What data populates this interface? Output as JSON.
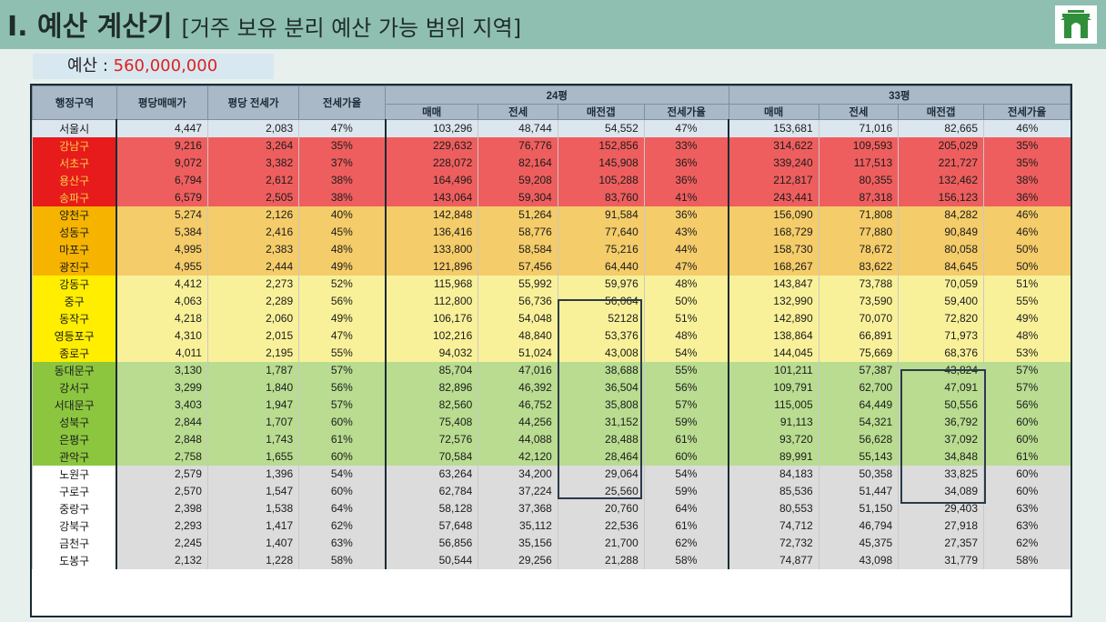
{
  "header": {
    "title": "I. 예산 계산기",
    "subtitle": "[거주 보유 분리 예산 가능 범위 지역]"
  },
  "budget": {
    "label": "예산 : ",
    "value": "560,000,000"
  },
  "table": {
    "col_region": "행정구역",
    "col_sale_per_pyeong": "평당매매가",
    "col_jeonse_per_pyeong": "평당 전세가",
    "col_jeonse_ratio": "전세가율",
    "group_24": "24평",
    "group_33": "33평",
    "sub_cols": [
      "매매",
      "전세",
      "매전갭",
      "전세가율"
    ],
    "rows": [
      {
        "tier": "seoul",
        "v": [
          "서울시",
          "4,447",
          "2,083",
          "47%",
          "103,296",
          "48,744",
          "54,552",
          "47%",
          "153,681",
          "71,016",
          "82,665",
          "46%"
        ]
      },
      {
        "tier": "red",
        "v": [
          "강남구",
          "9,216",
          "3,264",
          "35%",
          "229,632",
          "76,776",
          "152,856",
          "33%",
          "314,622",
          "109,593",
          "205,029",
          "35%"
        ]
      },
      {
        "tier": "red",
        "v": [
          "서초구",
          "9,072",
          "3,382",
          "37%",
          "228,072",
          "82,164",
          "145,908",
          "36%",
          "339,240",
          "117,513",
          "221,727",
          "35%"
        ]
      },
      {
        "tier": "red",
        "v": [
          "용산구",
          "6,794",
          "2,612",
          "38%",
          "164,496",
          "59,208",
          "105,288",
          "36%",
          "212,817",
          "80,355",
          "132,462",
          "38%"
        ]
      },
      {
        "tier": "red",
        "v": [
          "송파구",
          "6,579",
          "2,505",
          "38%",
          "143,064",
          "59,304",
          "83,760",
          "41%",
          "243,441",
          "87,318",
          "156,123",
          "36%"
        ]
      },
      {
        "tier": "orange",
        "v": [
          "양천구",
          "5,274",
          "2,126",
          "40%",
          "142,848",
          "51,264",
          "91,584",
          "36%",
          "156,090",
          "71,808",
          "84,282",
          "46%"
        ]
      },
      {
        "tier": "orange",
        "v": [
          "성동구",
          "5,384",
          "2,416",
          "45%",
          "136,416",
          "58,776",
          "77,640",
          "43%",
          "168,729",
          "77,880",
          "90,849",
          "46%"
        ]
      },
      {
        "tier": "orange",
        "v": [
          "마포구",
          "4,995",
          "2,383",
          "48%",
          "133,800",
          "58,584",
          "75,216",
          "44%",
          "158,730",
          "78,672",
          "80,058",
          "50%"
        ]
      },
      {
        "tier": "orange",
        "v": [
          "광진구",
          "4,955",
          "2,444",
          "49%",
          "121,896",
          "57,456",
          "64,440",
          "47%",
          "168,267",
          "83,622",
          "84,645",
          "50%"
        ]
      },
      {
        "tier": "yellow",
        "v": [
          "강동구",
          "4,412",
          "2,273",
          "52%",
          "115,968",
          "55,992",
          "59,976",
          "48%",
          "143,847",
          "73,788",
          "70,059",
          "51%"
        ]
      },
      {
        "tier": "yellow",
        "v": [
          "중구",
          "4,063",
          "2,289",
          "56%",
          "112,800",
          "56,736",
          "56,064",
          "50%",
          "132,990",
          "73,590",
          "59,400",
          "55%"
        ]
      },
      {
        "tier": "yellow",
        "v": [
          "동작구",
          "4,218",
          "2,060",
          "49%",
          "106,176",
          "54,048",
          "52128",
          "51%",
          "142,890",
          "70,070",
          "72,820",
          "49%"
        ]
      },
      {
        "tier": "yellow",
        "v": [
          "영등포구",
          "4,310",
          "2,015",
          "47%",
          "102,216",
          "48,840",
          "53,376",
          "48%",
          "138,864",
          "66,891",
          "71,973",
          "48%"
        ]
      },
      {
        "tier": "yellow",
        "v": [
          "종로구",
          "4,011",
          "2,195",
          "55%",
          "94,032",
          "51,024",
          "43,008",
          "54%",
          "144,045",
          "75,669",
          "68,376",
          "53%"
        ]
      },
      {
        "tier": "green",
        "v": [
          "동대문구",
          "3,130",
          "1,787",
          "57%",
          "85,704",
          "47,016",
          "38,688",
          "55%",
          "101,211",
          "57,387",
          "43,824",
          "57%"
        ]
      },
      {
        "tier": "green",
        "v": [
          "강서구",
          "3,299",
          "1,840",
          "56%",
          "82,896",
          "46,392",
          "36,504",
          "56%",
          "109,791",
          "62,700",
          "47,091",
          "57%"
        ]
      },
      {
        "tier": "green",
        "v": [
          "서대문구",
          "3,403",
          "1,947",
          "57%",
          "82,560",
          "46,752",
          "35,808",
          "57%",
          "115,005",
          "64,449",
          "50,556",
          "56%"
        ]
      },
      {
        "tier": "green",
        "v": [
          "성북구",
          "2,844",
          "1,707",
          "60%",
          "75,408",
          "44,256",
          "31,152",
          "59%",
          "91,113",
          "54,321",
          "36,792",
          "60%"
        ]
      },
      {
        "tier": "green",
        "v": [
          "은평구",
          "2,848",
          "1,743",
          "61%",
          "72,576",
          "44,088",
          "28,488",
          "61%",
          "93,720",
          "56,628",
          "37,092",
          "60%"
        ]
      },
      {
        "tier": "green",
        "v": [
          "관악구",
          "2,758",
          "1,655",
          "60%",
          "70,584",
          "42,120",
          "28,464",
          "60%",
          "89,991",
          "55,143",
          "34,848",
          "61%"
        ]
      },
      {
        "tier": "gray",
        "v": [
          "노원구",
          "2,579",
          "1,396",
          "54%",
          "63,264",
          "34,200",
          "29,064",
          "54%",
          "84,183",
          "50,358",
          "33,825",
          "60%"
        ]
      },
      {
        "tier": "gray",
        "v": [
          "구로구",
          "2,570",
          "1,547",
          "60%",
          "62,784",
          "37,224",
          "25,560",
          "59%",
          "85,536",
          "51,447",
          "34,089",
          "60%"
        ]
      },
      {
        "tier": "gray",
        "v": [
          "중랑구",
          "2,398",
          "1,538",
          "64%",
          "58,128",
          "37,368",
          "20,760",
          "64%",
          "80,553",
          "51,150",
          "29,403",
          "63%"
        ]
      },
      {
        "tier": "gray",
        "v": [
          "강북구",
          "2,293",
          "1,417",
          "62%",
          "57,648",
          "35,112",
          "22,536",
          "61%",
          "74,712",
          "46,794",
          "27,918",
          "63%"
        ]
      },
      {
        "tier": "gray",
        "v": [
          "금천구",
          "2,245",
          "1,407",
          "63%",
          "56,856",
          "35,156",
          "21,700",
          "62%",
          "72,732",
          "45,375",
          "27,357",
          "62%"
        ]
      },
      {
        "tier": "gray",
        "v": [
          "도봉구",
          "2,132",
          "1,228",
          "58%",
          "50,544",
          "29,256",
          "21,288",
          "58%",
          "74,877",
          "43,098",
          "31,779",
          "58%"
        ]
      }
    ]
  },
  "colors": {
    "header_bg": "#8fbfb0",
    "red": "#ee5e5e",
    "orange": "#f4cc6a",
    "yellow": "#f9f19a",
    "green": "#b9dc91",
    "gray": "#dcdcdc",
    "budget_value": "#e02020"
  },
  "icons": {
    "logo": "seoul-gate-logo-icon"
  }
}
